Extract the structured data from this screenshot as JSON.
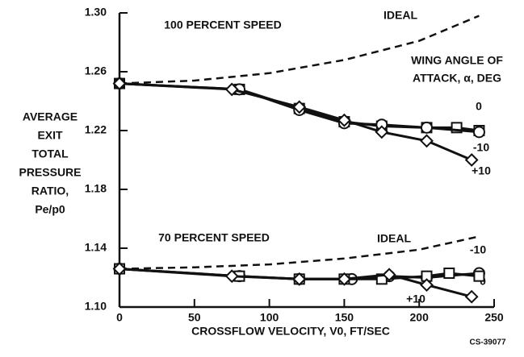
{
  "chart_data": {
    "type": "line",
    "y_label": [
      "AVERAGE",
      "EXIT",
      "TOTAL",
      "PRESSURE",
      "RATIO,",
      "Pe/p0"
    ],
    "x_label": "CROSSFLOW VELOCITY, V0, FT/SEC",
    "legend_title": [
      "WING ANGLE OF",
      "ATTACK, α, DEG"
    ],
    "code": "CS-39077",
    "xlim": [
      0,
      250
    ],
    "xticks": [
      0,
      50,
      100,
      150,
      200,
      250
    ],
    "ylim": [
      1.1,
      1.3
    ],
    "yticks": [
      {
        "value": 1.1,
        "label": "1.10"
      },
      1.14,
      1.18,
      1.22,
      1.26,
      {
        "value": 1.3,
        "label": "1.30"
      }
    ],
    "groups": [
      {
        "label": "100 PERCENT SPEED",
        "series": [
          {
            "name": "IDEAL",
            "color": "#111",
            "marker": "none",
            "dashed": true,
            "x": [
              0,
              50,
              100,
              150,
              200,
              240
            ],
            "values": [
              1.252,
              1.254,
              1.259,
              1.268,
              1.281,
              1.298
            ]
          },
          {
            "name": "0",
            "color": "#111",
            "marker": "square",
            "dashed": false,
            "x": [
              0,
              80,
              120,
              150,
              175,
              205,
              225,
              240
            ],
            "values": [
              1.252,
              1.248,
              1.235,
              1.226,
              1.223,
              1.222,
              1.222,
              1.22
            ]
          },
          {
            "name": "-10",
            "color": "#111",
            "marker": "circle",
            "dashed": false,
            "x": [
              0,
              80,
              120,
              150,
              175,
              205,
              240
            ],
            "values": [
              1.252,
              1.248,
              1.234,
              1.225,
              1.224,
              1.222,
              1.219
            ]
          },
          {
            "name": "+10",
            "color": "#111",
            "marker": "diamond",
            "dashed": false,
            "x": [
              0,
              75,
              120,
              150,
              175,
              205,
              235
            ],
            "values": [
              1.252,
              1.248,
              1.236,
              1.227,
              1.219,
              1.213,
              1.2
            ]
          }
        ]
      },
      {
        "label": "70 PERCENT SPEED",
        "series": [
          {
            "name": "IDEAL",
            "color": "#111",
            "marker": "none",
            "dashed": true,
            "x": [
              0,
              50,
              100,
              150,
              200,
              240
            ],
            "values": [
              1.126,
              1.127,
              1.129,
              1.133,
              1.139,
              1.148
            ]
          },
          {
            "name": "-10",
            "color": "#111",
            "marker": "circle",
            "dashed": false,
            "x": [
              0,
              80,
              120,
              155,
              180,
              205,
              240
            ],
            "values": [
              1.126,
              1.121,
              1.119,
              1.119,
              1.121,
              1.12,
              1.123
            ]
          },
          {
            "name": "0",
            "color": "#111",
            "marker": "square",
            "dashed": false,
            "x": [
              0,
              80,
              120,
              150,
              175,
              205,
              220,
              240
            ],
            "values": [
              1.126,
              1.121,
              1.119,
              1.119,
              1.119,
              1.121,
              1.123,
              1.121
            ]
          },
          {
            "name": "+10",
            "color": "#111",
            "marker": "diamond",
            "dashed": false,
            "x": [
              0,
              75,
              120,
              150,
              180,
              205,
              235
            ],
            "values": [
              1.126,
              1.121,
              1.119,
              1.119,
              1.122,
              1.115,
              1.107
            ]
          }
        ]
      }
    ]
  }
}
